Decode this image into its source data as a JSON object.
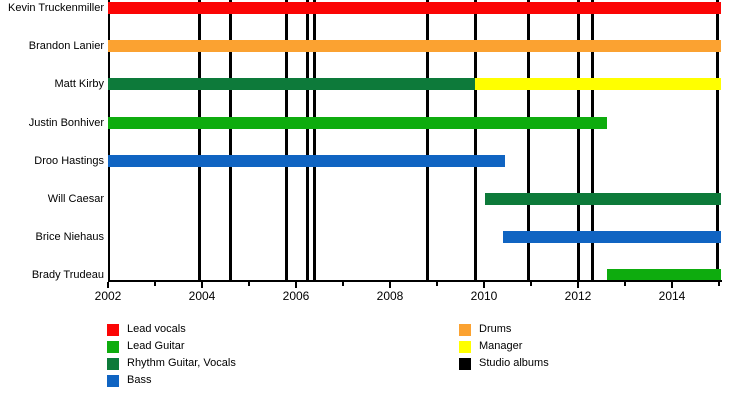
{
  "colors": {
    "red": "#FB0505",
    "orange": "#FBA231",
    "darkgreen": "#0D7A3A",
    "green": "#0EAC0E",
    "blue": "#1064C2",
    "yellow": "#FFFF00",
    "black": "#000000"
  },
  "chart_data": {
    "type": "timeline",
    "x_axis": {
      "start": 2002,
      "end": 2015.05,
      "unit": "year",
      "minor_tick_interval": 1,
      "labels": [
        {
          "year": 2002,
          "text": "2002"
        },
        {
          "year": 2004,
          "text": "2004"
        },
        {
          "year": 2006,
          "text": "2006"
        },
        {
          "year": 2008,
          "text": "2008"
        },
        {
          "year": 2010,
          "text": "2010"
        },
        {
          "year": 2012,
          "text": "2012"
        },
        {
          "year": 2014,
          "text": "2014"
        }
      ]
    },
    "members": [
      {
        "name": "Kevin Truckenmiller",
        "segments": [
          {
            "role": "Lead vocals",
            "color": "red",
            "start": 2002,
            "end": 2015.05
          }
        ]
      },
      {
        "name": "Brandon Lanier",
        "segments": [
          {
            "role": "Drums",
            "color": "orange",
            "start": 2002,
            "end": 2015.05
          }
        ]
      },
      {
        "name": "Matt Kirby",
        "segments": [
          {
            "role": "Rhythm Guitar, Vocals",
            "color": "darkgreen",
            "start": 2002,
            "end": 2009.8
          },
          {
            "role": "Manager",
            "color": "yellow",
            "start": 2009.8,
            "end": 2015.05
          }
        ]
      },
      {
        "name": "Justin Bonhiver",
        "segments": [
          {
            "role": "Lead Guitar",
            "color": "green",
            "start": 2002,
            "end": 2012.62
          }
        ]
      },
      {
        "name": "Droo Hastings",
        "segments": [
          {
            "role": "Bass",
            "color": "blue",
            "start": 2002,
            "end": 2010.45
          }
        ]
      },
      {
        "name": "Will Caesar",
        "segments": [
          {
            "role": "Rhythm Guitar, Vocals",
            "color": "darkgreen",
            "start": 2010.02,
            "end": 2015.05
          }
        ]
      },
      {
        "name": "Brice Niehaus",
        "segments": [
          {
            "role": "Bass",
            "color": "blue",
            "start": 2010.4,
            "end": 2015.05
          }
        ]
      },
      {
        "name": "Brady Trudeau",
        "segments": [
          {
            "role": "Lead Guitar",
            "color": "green",
            "start": 2012.62,
            "end": 2015.05
          }
        ]
      }
    ],
    "album_markers": {
      "label": "Studio albums",
      "years": [
        2003.95,
        2004.6,
        2005.8,
        2006.25,
        2006.4,
        2008.8,
        2009.81,
        2010.95,
        2012.0,
        2012.3,
        2014.97
      ]
    },
    "legend": {
      "columns": [
        [
          {
            "label": "Lead vocals",
            "color": "red"
          },
          {
            "label": "Lead Guitar",
            "color": "green"
          },
          {
            "label": "Rhythm Guitar, Vocals",
            "color": "darkgreen"
          },
          {
            "label": "Bass",
            "color": "blue"
          }
        ],
        [
          {
            "label": "Drums",
            "color": "orange"
          },
          {
            "label": "Manager",
            "color": "yellow"
          },
          {
            "label": "Studio albums",
            "color": "black"
          }
        ]
      ]
    }
  }
}
